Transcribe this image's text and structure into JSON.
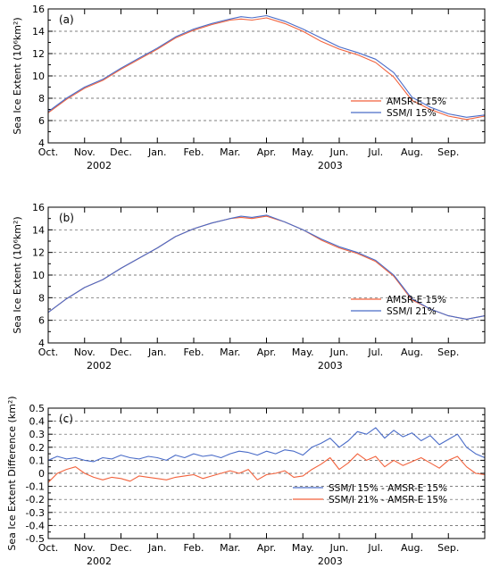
{
  "figure": {
    "title": ""
  },
  "colors": {
    "amsr": "#f2623c",
    "ssmi": "#4a6cc8",
    "grid": "#555555"
  },
  "months": [
    "Oct.",
    "Nov.",
    "Dec.",
    "Jan.",
    "Feb.",
    "Mar.",
    "Apr.",
    "May.",
    "Jun.",
    "Jul.",
    "Aug.",
    "Sep."
  ],
  "years": [
    "2002",
    "2003"
  ],
  "chart_data": [
    {
      "type": "line",
      "panel_label": "(a)",
      "ylabel": "Sea Ice Extent (10⁶km²)",
      "xlabel": "",
      "ylim": [
        4,
        16
      ],
      "yticks": [
        4,
        6,
        8,
        10,
        12,
        14,
        16
      ],
      "xlim": [
        0,
        12
      ],
      "grid": "horizontal-dashed",
      "legend_position": "lower-right",
      "series": [
        {
          "name": "AMSR-E 15%",
          "color": "#f2623c",
          "x": [
            0,
            0.5,
            1,
            1.5,
            2,
            2.5,
            3,
            3.5,
            4,
            4.5,
            5,
            5.3,
            5.6,
            6,
            6.5,
            7,
            7.5,
            8,
            8.5,
            9,
            9.5,
            10,
            10.5,
            11,
            11.5,
            12
          ],
          "y": [
            6.7,
            7.9,
            8.9,
            9.6,
            10.6,
            11.5,
            12.4,
            13.4,
            14.1,
            14.6,
            15.0,
            15.1,
            15.0,
            15.2,
            14.7,
            14.0,
            13.1,
            12.4,
            11.9,
            11.2,
            9.9,
            7.8,
            7.0,
            6.4,
            6.1,
            6.4
          ]
        },
        {
          "name": "SSM/I 15%",
          "color": "#4a6cc8",
          "x": [
            0,
            0.5,
            1,
            1.5,
            2,
            2.5,
            3,
            3.5,
            4,
            4.5,
            5,
            5.3,
            5.6,
            6,
            6.5,
            7,
            7.5,
            8,
            8.5,
            9,
            9.5,
            10,
            10.5,
            11,
            11.5,
            12
          ],
          "y": [
            6.8,
            8.0,
            9.0,
            9.7,
            10.7,
            11.6,
            12.5,
            13.5,
            14.2,
            14.7,
            15.1,
            15.3,
            15.2,
            15.4,
            14.9,
            14.2,
            13.4,
            12.6,
            12.1,
            11.5,
            10.3,
            8.1,
            7.2,
            6.6,
            6.3,
            6.5
          ]
        }
      ]
    },
    {
      "type": "line",
      "panel_label": "(b)",
      "ylabel": "Sea Ice Extent (10⁶km²)",
      "xlabel": "",
      "ylim": [
        4,
        16
      ],
      "yticks": [
        4,
        6,
        8,
        10,
        12,
        14,
        16
      ],
      "xlim": [
        0,
        12
      ],
      "grid": "horizontal-dashed",
      "legend_position": "lower-right",
      "series": [
        {
          "name": "AMSR-E 15%",
          "color": "#f2623c",
          "x": [
            0,
            0.5,
            1,
            1.5,
            2,
            2.5,
            3,
            3.5,
            4,
            4.5,
            5,
            5.3,
            5.6,
            6,
            6.5,
            7,
            7.5,
            8,
            8.5,
            9,
            9.5,
            10,
            10.5,
            11,
            11.5,
            12
          ],
          "y": [
            6.7,
            7.9,
            8.9,
            9.6,
            10.6,
            11.5,
            12.4,
            13.4,
            14.1,
            14.6,
            15.0,
            15.1,
            15.0,
            15.2,
            14.7,
            14.0,
            13.1,
            12.4,
            11.9,
            11.2,
            9.9,
            7.8,
            7.0,
            6.4,
            6.1,
            6.4
          ]
        },
        {
          "name": "SSM/I 21%",
          "color": "#4a6cc8",
          "x": [
            0,
            0.5,
            1,
            1.5,
            2,
            2.5,
            3,
            3.5,
            4,
            4.5,
            5,
            5.3,
            5.6,
            6,
            6.5,
            7,
            7.5,
            8,
            8.5,
            9,
            9.5,
            10,
            10.5,
            11,
            11.5,
            12
          ],
          "y": [
            6.7,
            7.9,
            8.9,
            9.6,
            10.6,
            11.5,
            12.4,
            13.4,
            14.1,
            14.6,
            15.0,
            15.2,
            15.1,
            15.3,
            14.7,
            14.0,
            13.2,
            12.5,
            12.0,
            11.3,
            10.0,
            7.9,
            7.0,
            6.4,
            6.1,
            6.4
          ]
        }
      ]
    },
    {
      "type": "line",
      "panel_label": "(c)",
      "ylabel": "Sea Ice Extent Difference (km²)",
      "xlabel": "",
      "ylim": [
        -0.5,
        0.5
      ],
      "yticks": [
        -0.5,
        -0.4,
        -0.3,
        -0.2,
        -0.1,
        0.0,
        0.1,
        0.2,
        0.3,
        0.4,
        0.5
      ],
      "xlim": [
        0,
        12
      ],
      "grid": "horizontal-dashed",
      "legend_position": "lower-right",
      "series": [
        {
          "name": "SSM/I 15% - AMSR-E 15%",
          "color": "#4a6cc8",
          "x": [
            0,
            0.25,
            0.5,
            0.75,
            1,
            1.25,
            1.5,
            1.75,
            2,
            2.25,
            2.5,
            2.75,
            3,
            3.25,
            3.5,
            3.75,
            4,
            4.25,
            4.5,
            4.75,
            5,
            5.25,
            5.5,
            5.75,
            6,
            6.25,
            6.5,
            6.75,
            7,
            7.25,
            7.5,
            7.75,
            8,
            8.25,
            8.5,
            8.75,
            9,
            9.25,
            9.5,
            9.75,
            10,
            10.25,
            10.5,
            10.75,
            11,
            11.25,
            11.5,
            11.75,
            12
          ],
          "y": [
            0.1,
            0.13,
            0.11,
            0.12,
            0.1,
            0.09,
            0.12,
            0.11,
            0.14,
            0.12,
            0.11,
            0.13,
            0.12,
            0.1,
            0.14,
            0.12,
            0.15,
            0.13,
            0.14,
            0.12,
            0.15,
            0.17,
            0.16,
            0.14,
            0.17,
            0.15,
            0.18,
            0.17,
            0.14,
            0.2,
            0.23,
            0.27,
            0.2,
            0.25,
            0.32,
            0.3,
            0.35,
            0.27,
            0.33,
            0.28,
            0.31,
            0.25,
            0.29,
            0.22,
            0.26,
            0.3,
            0.2,
            0.15,
            0.12
          ]
        },
        {
          "name": "SSM/I 21% - AMSR-E 15%",
          "color": "#f2623c",
          "x": [
            0,
            0.25,
            0.5,
            0.75,
            1,
            1.25,
            1.5,
            1.75,
            2,
            2.25,
            2.5,
            2.75,
            3,
            3.25,
            3.5,
            3.75,
            4,
            4.25,
            4.5,
            4.75,
            5,
            5.25,
            5.5,
            5.75,
            6,
            6.25,
            6.5,
            6.75,
            7,
            7.25,
            7.5,
            7.75,
            8,
            8.25,
            8.5,
            8.75,
            9,
            9.25,
            9.5,
            9.75,
            10,
            10.25,
            10.5,
            10.75,
            11,
            11.25,
            11.5,
            11.75,
            12
          ],
          "y": [
            -0.07,
            0.0,
            0.03,
            0.05,
            0.0,
            -0.03,
            -0.05,
            -0.03,
            -0.04,
            -0.06,
            -0.02,
            -0.03,
            -0.04,
            -0.05,
            -0.03,
            -0.02,
            -0.01,
            -0.04,
            -0.02,
            0.0,
            0.02,
            0.0,
            0.03,
            -0.05,
            -0.01,
            0.0,
            0.02,
            -0.03,
            -0.02,
            0.03,
            0.07,
            0.12,
            0.03,
            0.08,
            0.15,
            0.1,
            0.13,
            0.05,
            0.1,
            0.06,
            0.09,
            0.12,
            0.08,
            0.04,
            0.1,
            0.13,
            0.05,
            0.0,
            -0.01
          ]
        }
      ]
    }
  ]
}
